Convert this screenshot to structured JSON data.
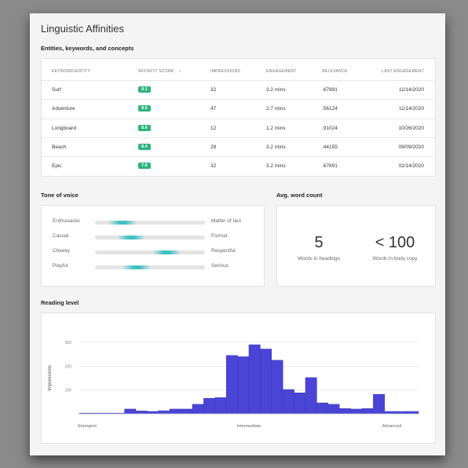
{
  "page_title": "Linguistic Affinities",
  "entities": {
    "title": "Entities, keywords, and concepts",
    "columns": [
      "KEYWORD/ENTITY",
      "AFFINITY SCORE",
      "IMPRESSIONS",
      "ENGAGEMENT",
      "RELEVANCE",
      "LAST ENGAGEMENT"
    ],
    "sort_icon": "arrow-down-icon",
    "badge_color": "#2db37d",
    "rows": [
      {
        "keyword": "Surf",
        "score": "9.1",
        "impressions": "32",
        "engagement": "3.2 mins",
        "relevance": ".67891",
        "last": "11/14/2020"
      },
      {
        "keyword": "Adventure",
        "score": "8.9",
        "impressions": "47",
        "engagement": "2.7 mins",
        "relevance": ".56124",
        "last": "11/14/2020"
      },
      {
        "keyword": "Longboard",
        "score": "8.6",
        "impressions": "12",
        "engagement": "1.2 mins",
        "relevance": ".91024",
        "last": "10/26/2020"
      },
      {
        "keyword": "Beach",
        "score": "8.4",
        "impressions": "28",
        "engagement": "3.2 mins",
        "relevance": ".44155",
        "last": "09/09/2020"
      },
      {
        "keyword": "Epic",
        "score": "7.9",
        "impressions": "32",
        "engagement": "3.2 mins",
        "relevance": ".67891",
        "last": "02/14/2020"
      }
    ]
  },
  "tone": {
    "title": "Tone of voice",
    "fill_color": "#24b9be",
    "rows": [
      {
        "left": "Enthusiastic",
        "right": "Matter of fact",
        "position": 0.25
      },
      {
        "left": "Casual",
        "right": "Formal",
        "position": 0.33
      },
      {
        "left": "Cheeky",
        "right": "Respectful",
        "position": 0.65
      },
      {
        "left": "Playful",
        "right": "Serious",
        "position": 0.38
      }
    ]
  },
  "word_count": {
    "title": "Avg. word count",
    "headings_value": "5",
    "headings_label": "Words in headings",
    "body_value": "< 100",
    "body_label": "Words in body copy"
  },
  "reading_level": {
    "title": "Reading level",
    "chart_data": {
      "type": "bar",
      "title": "",
      "xlabel": "",
      "ylabel": "Impressions",
      "ylim": [
        0,
        300
      ],
      "yticks": [
        100,
        200,
        300
      ],
      "x_tick_labels": [
        "Emergent",
        "Intermediate",
        "Advanced"
      ],
      "grid": true,
      "bar_color": "#4a45d6",
      "values": [
        3,
        3,
        3,
        3,
        20,
        12,
        10,
        13,
        20,
        20,
        40,
        65,
        68,
        245,
        240,
        290,
        272,
        225,
        102,
        88,
        152,
        46,
        40,
        22,
        20,
        22,
        82,
        10,
        10,
        10
      ]
    }
  }
}
